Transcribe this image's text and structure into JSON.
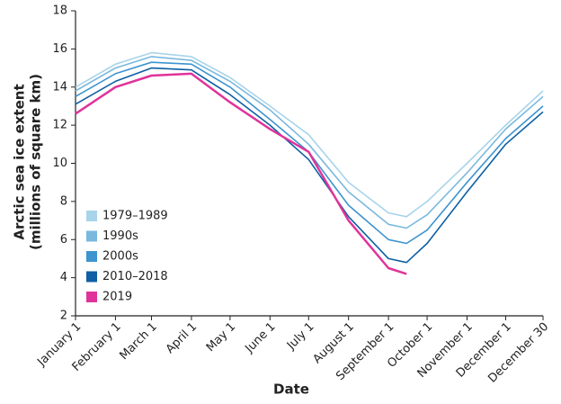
{
  "chart_data": {
    "type": "line",
    "x_label": "Date",
    "y_label": [
      "Arctic sea ice extent",
      "(millions of square km)"
    ],
    "x": [
      1,
      32,
      60,
      91,
      121,
      152,
      182,
      213,
      244,
      258,
      274,
      305,
      335,
      364
    ],
    "series": [
      {
        "name": "1979–1989",
        "color": "#a8d4ea",
        "values": [
          14.0,
          15.2,
          15.8,
          15.6,
          14.5,
          13.0,
          11.5,
          9.0,
          7.4,
          7.2,
          8.0,
          10.0,
          12.0,
          13.8
        ]
      },
      {
        "name": "1990s",
        "color": "#7ab8de",
        "values": [
          13.8,
          15.0,
          15.6,
          15.4,
          14.3,
          12.8,
          11.0,
          8.5,
          6.8,
          6.6,
          7.3,
          9.5,
          11.8,
          13.5
        ]
      },
      {
        "name": "2000s",
        "color": "#3d94cf",
        "values": [
          13.5,
          14.7,
          15.3,
          15.2,
          14.0,
          12.3,
          10.6,
          7.8,
          6.0,
          5.8,
          6.5,
          9.0,
          11.3,
          13.0
        ]
      },
      {
        "name": "2010–2018",
        "color": "#0e5fa3",
        "values": [
          13.1,
          14.3,
          15.0,
          14.9,
          13.6,
          12.0,
          10.2,
          7.2,
          5.0,
          4.8,
          5.8,
          8.5,
          11.0,
          12.7
        ]
      },
      {
        "name": "2019",
        "color": "#e0339a",
        "values": [
          12.6,
          14.0,
          14.6,
          14.7,
          13.2,
          11.8,
          10.6,
          7.0,
          4.5,
          4.2,
          null,
          null,
          null,
          null
        ]
      }
    ],
    "xlim": [
      1,
      364
    ],
    "xticks": [
      {
        "value": 1,
        "label": "January 1"
      },
      {
        "value": 32,
        "label": "February 1"
      },
      {
        "value": 60,
        "label": "March 1"
      },
      {
        "value": 91,
        "label": "April 1"
      },
      {
        "value": 121,
        "label": "May 1"
      },
      {
        "value": 152,
        "label": "June 1"
      },
      {
        "value": 182,
        "label": "July 1"
      },
      {
        "value": 213,
        "label": "August 1"
      },
      {
        "value": 244,
        "label": "September 1"
      },
      {
        "value": 274,
        "label": "October 1"
      },
      {
        "value": 305,
        "label": "November 1"
      },
      {
        "value": 335,
        "label": "December 1"
      },
      {
        "value": 364,
        "label": "December 30"
      }
    ],
    "ylim": [
      2,
      18
    ],
    "yticks": [
      2,
      4,
      6,
      8,
      10,
      12,
      14,
      16,
      18
    ],
    "legend": "lower-left"
  }
}
